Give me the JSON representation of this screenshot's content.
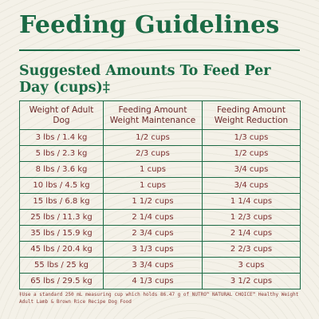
{
  "title": "Feeding Guidelines",
  "subtitle": "Suggested Amounts To Feed Per Day (cups)‡",
  "table": {
    "headers": [
      "Weight of Adult Dog",
      "Feeding Amount Weight Maintenance",
      "Feeding Amount Weight Reduction"
    ],
    "rows": [
      [
        "3 lbs / 1.4 kg",
        "1/2 cups",
        "1/3 cups"
      ],
      [
        "5 lbs / 2.3 kg",
        "2/3 cups",
        "1/2 cups"
      ],
      [
        "8 lbs / 3.6 kg",
        "1 cups",
        "3/4 cups"
      ],
      [
        "10 lbs / 4.5 kg",
        "1 cups",
        "3/4 cups"
      ],
      [
        "15 lbs / 6.8 kg",
        "1 1/2 cups",
        "1 1/4 cups"
      ],
      [
        "25 lbs / 11.3 kg",
        "2 1/4 cups",
        "1 2/3 cups"
      ],
      [
        "35 lbs / 15.9 kg",
        "2 3/4 cups",
        "2 1/4 cups"
      ],
      [
        "45 lbs / 20.4 kg",
        "3 1/3 cups",
        "2 2/3 cups"
      ],
      [
        "55 lbs / 25 kg",
        "3 3/4 cups",
        "3 cups"
      ],
      [
        "65 lbs / 29.5 kg",
        "4 1/3 cups",
        "3 1/2 cups"
      ]
    ]
  },
  "footnote": "‡Use a standard 250 mL measuring cup which holds 86.47 g of NUTRO™ NATURAL CHOICE™ Healthy Weight Adult Lamb & Brown Rice Recipe Dog Food",
  "colors": {
    "green": "#1b6a45",
    "text": "#7a2e2e",
    "background": "#f4f1e8"
  }
}
